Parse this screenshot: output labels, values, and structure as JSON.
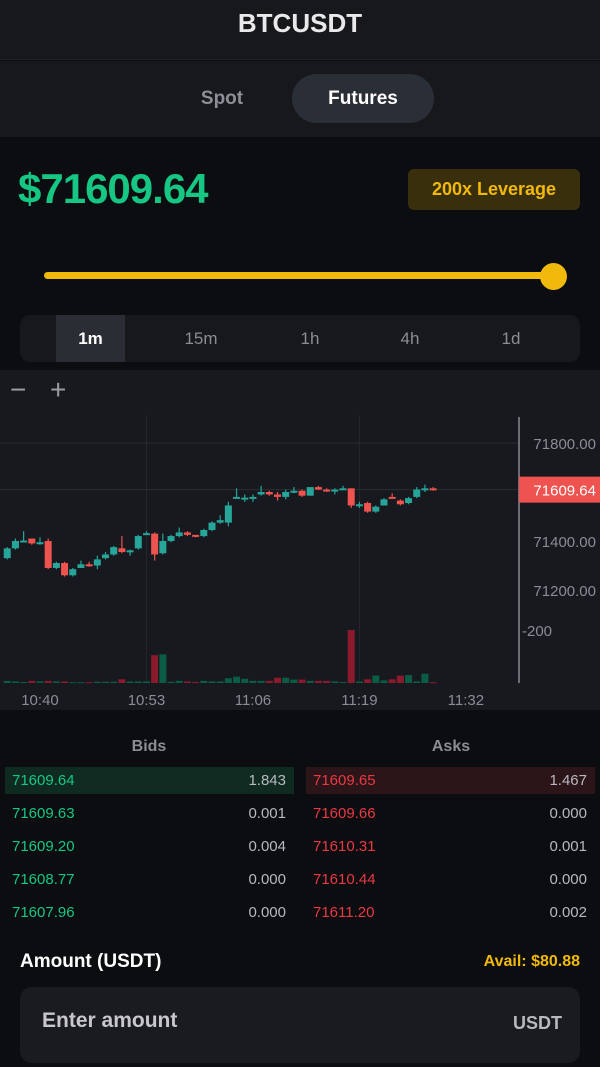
{
  "header": {
    "title": "BTCUSDT"
  },
  "mode_tabs": [
    {
      "label": "Spot",
      "active": false
    },
    {
      "label": "Futures",
      "active": true
    }
  ],
  "ticker": {
    "price": "$71609.64",
    "leverage": "200x Leverage",
    "leverage_slider_percent": 100
  },
  "timeframes": [
    {
      "label": "1m",
      "active": true
    },
    {
      "label": "15m",
      "active": false
    },
    {
      "label": "1h",
      "active": false
    },
    {
      "label": "4h",
      "active": false
    },
    {
      "label": "1d",
      "active": false
    }
  ],
  "chart_controls": {
    "zoom_out": "−",
    "zoom_in": "+"
  },
  "colors": {
    "up": "#26a69a",
    "down": "#ef5350",
    "bid": "#16c784",
    "ask": "#ea3943",
    "accent": "#f0b90b"
  },
  "chart_data": {
    "type": "candlestick",
    "price_ticks": [
      "71800.00",
      "71400.00",
      "71200.00"
    ],
    "last_price_label": "71609.64",
    "volume_tick": "200",
    "time_ticks": [
      "10:40",
      "10:53",
      "11:06",
      "11:19",
      "11:32"
    ],
    "candles": [
      [
        "10:36",
        71330,
        71375,
        71325,
        71370,
        8
      ],
      [
        "10:37",
        71370,
        71410,
        71365,
        71400,
        6
      ],
      [
        "10:38",
        71400,
        71440,
        71395,
        71402,
        4
      ],
      [
        "10:39",
        71410,
        71410,
        71385,
        71390,
        8
      ],
      [
        "10:40",
        71390,
        71415,
        71385,
        71395,
        6
      ],
      [
        "10:41",
        71400,
        71410,
        71285,
        71290,
        8
      ],
      [
        "10:42",
        71290,
        71315,
        71285,
        71310,
        6
      ],
      [
        "10:43",
        71310,
        71315,
        71255,
        71260,
        6
      ],
      [
        "10:44",
        71260,
        71290,
        71255,
        71285,
        3
      ],
      [
        "10:45",
        71290,
        71320,
        71290,
        71305,
        3
      ],
      [
        "10:46",
        71305,
        71315,
        71295,
        71300,
        3
      ],
      [
        "10:47",
        71300,
        71340,
        71285,
        71325,
        5
      ],
      [
        "10:48",
        71330,
        71355,
        71325,
        71345,
        5
      ],
      [
        "10:49",
        71345,
        71380,
        71340,
        71375,
        5
      ],
      [
        "10:50",
        71370,
        71420,
        71350,
        71355,
        14
      ],
      [
        "10:51",
        71360,
        71365,
        71340,
        71362,
        6
      ],
      [
        "10:52",
        71370,
        71425,
        71365,
        71420,
        6
      ],
      [
        "10:53",
        71428,
        71440,
        71425,
        71432,
        6
      ],
      [
        "10:54",
        71430,
        71435,
        71320,
        71345,
        105
      ],
      [
        "10:55",
        71350,
        71430,
        71345,
        71400,
        108
      ],
      [
        "10:56",
        71400,
        71425,
        71395,
        71420,
        5
      ],
      [
        "10:57",
        71420,
        71455,
        71415,
        71435,
        8
      ],
      [
        "10:58",
        71435,
        71440,
        71420,
        71425,
        6
      ],
      [
        "10:59",
        71425,
        71425,
        71415,
        71420,
        4
      ],
      [
        "11:00",
        71420,
        71450,
        71415,
        71445,
        8
      ],
      [
        "11:01",
        71445,
        71480,
        71440,
        71475,
        6
      ],
      [
        "11:02",
        71475,
        71505,
        71470,
        71485,
        6
      ],
      [
        "11:03",
        71475,
        71560,
        71460,
        71545,
        18
      ],
      [
        "11:04",
        71575,
        71615,
        71575,
        71580,
        24
      ],
      [
        "11:05",
        71575,
        71590,
        71560,
        71577,
        16
      ],
      [
        "11:06",
        71575,
        71590,
        71560,
        71580,
        8
      ],
      [
        "11:07",
        71590,
        71625,
        71585,
        71600,
        8
      ],
      [
        "11:08",
        71600,
        71605,
        71585,
        71590,
        8
      ],
      [
        "11:09",
        71590,
        71600,
        71565,
        71580,
        20
      ],
      [
        "11:10",
        71580,
        71610,
        71570,
        71600,
        20
      ],
      [
        "11:11",
        71600,
        71620,
        71595,
        71605,
        13
      ],
      [
        "11:12",
        71605,
        71610,
        71580,
        71585,
        13
      ],
      [
        "11:13",
        71585,
        71620,
        71585,
        71620,
        8
      ],
      [
        "11:14",
        71620,
        71625,
        71608,
        71610,
        8
      ],
      [
        "11:15",
        71610,
        71615,
        71600,
        71605,
        8
      ],
      [
        "11:16",
        71605,
        71615,
        71590,
        71610,
        6
      ],
      [
        "11:17",
        71610,
        71625,
        71608,
        71615,
        4
      ],
      [
        "11:18",
        71615,
        71615,
        71535,
        71545,
        200
      ],
      [
        "11:19",
        71545,
        71560,
        71535,
        71550,
        6
      ],
      [
        "11:20",
        71555,
        71560,
        71515,
        71520,
        14
      ],
      [
        "11:21",
        71520,
        71545,
        71515,
        71540,
        28
      ],
      [
        "11:22",
        71545,
        71575,
        71545,
        71570,
        10
      ],
      [
        "11:23",
        71580,
        71595,
        71575,
        71575,
        14
      ],
      [
        "11:24",
        71565,
        71570,
        71545,
        71550,
        28
      ],
      [
        "11:25",
        71555,
        71580,
        71550,
        71575,
        30
      ],
      [
        "11:26",
        71580,
        71620,
        71575,
        71610,
        6
      ],
      [
        "11:27",
        71610,
        71630,
        71600,
        71615,
        35
      ],
      [
        "11:28",
        71615,
        71620,
        71605,
        71609.64,
        3
      ]
    ]
  },
  "orderbook": {
    "bids_label": "Bids",
    "asks_label": "Asks",
    "bids": [
      {
        "price": "71609.64",
        "qty": "1.843"
      },
      {
        "price": "71609.63",
        "qty": "0.001"
      },
      {
        "price": "71609.20",
        "qty": "0.004"
      },
      {
        "price": "71608.77",
        "qty": "0.000"
      },
      {
        "price": "71607.96",
        "qty": "0.000"
      }
    ],
    "asks": [
      {
        "price": "71609.65",
        "qty": "1.467"
      },
      {
        "price": "71609.66",
        "qty": "0.000"
      },
      {
        "price": "71610.31",
        "qty": "0.001"
      },
      {
        "price": "71610.44",
        "qty": "0.000"
      },
      {
        "price": "71611.20",
        "qty": "0.002"
      }
    ]
  },
  "order_form": {
    "amount_label": "Amount (USDT)",
    "available": "Avail: $80.88",
    "amount_placeholder": "Enter amount",
    "amount_value": "",
    "unit": "USDT"
  }
}
